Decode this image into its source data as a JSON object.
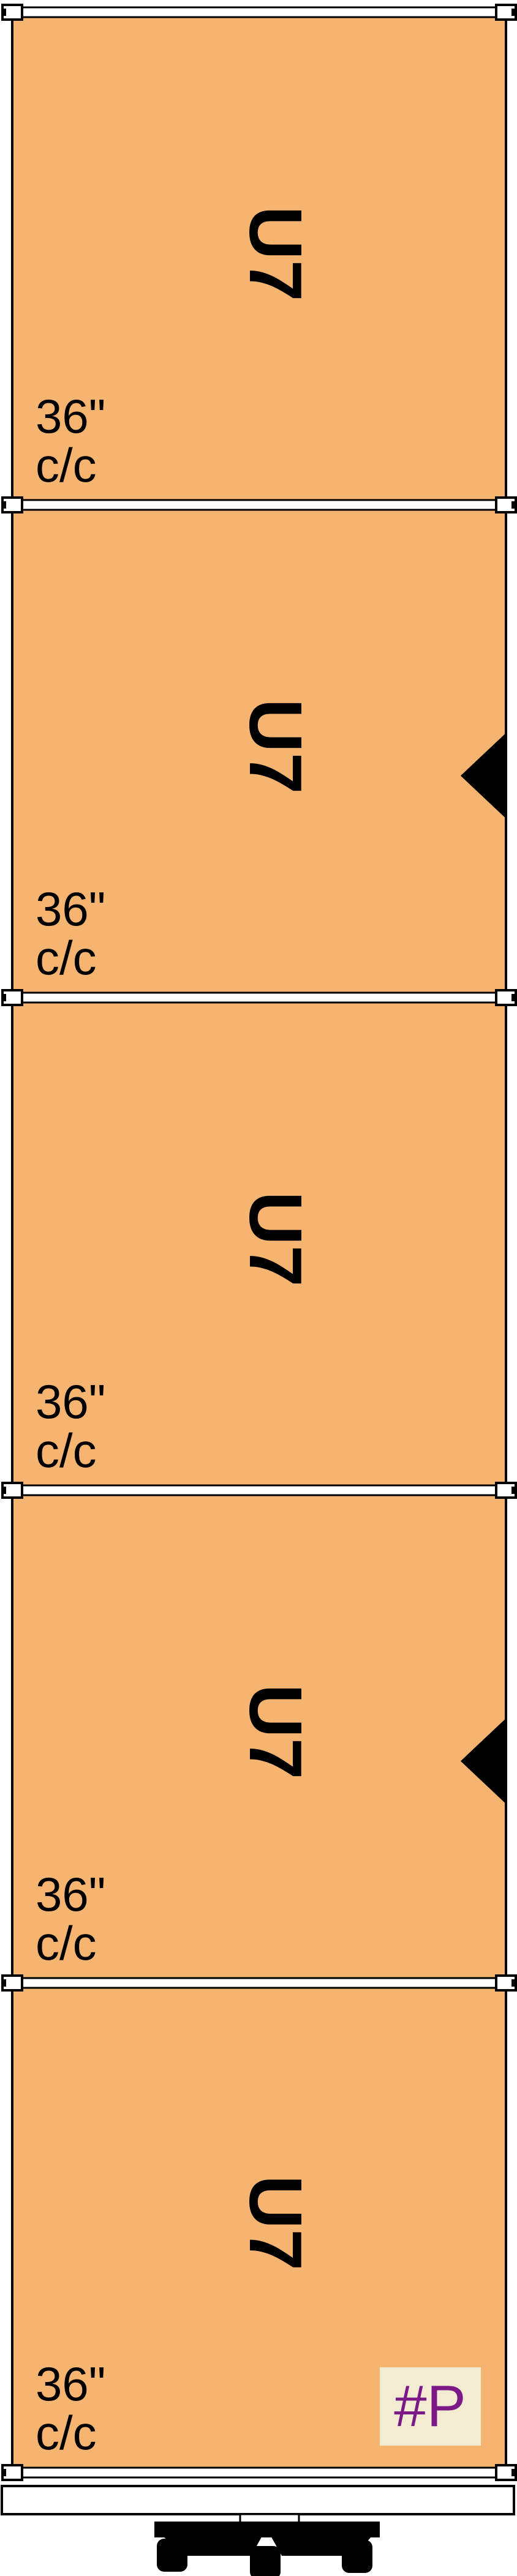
{
  "diagram": {
    "panel_color": "#f5b46f",
    "bays": [
      {
        "label": "U7",
        "spacing_line1": "36\"",
        "spacing_line2": "c/c",
        "arrow": false
      },
      {
        "label": "U7",
        "spacing_line1": "36\"",
        "spacing_line2": "c/c",
        "arrow": true
      },
      {
        "label": "U7",
        "spacing_line1": "36\"",
        "spacing_line2": "c/c",
        "arrow": false
      },
      {
        "label": "U7",
        "spacing_line1": "36\"",
        "spacing_line2": "c/c",
        "arrow": true
      },
      {
        "label": "U7",
        "spacing_line1": "36\"",
        "spacing_line2": "c/c",
        "arrow": false
      }
    ],
    "tag": {
      "text": "#P",
      "color": "#7b1a86",
      "background": "#f3ecd3"
    }
  }
}
